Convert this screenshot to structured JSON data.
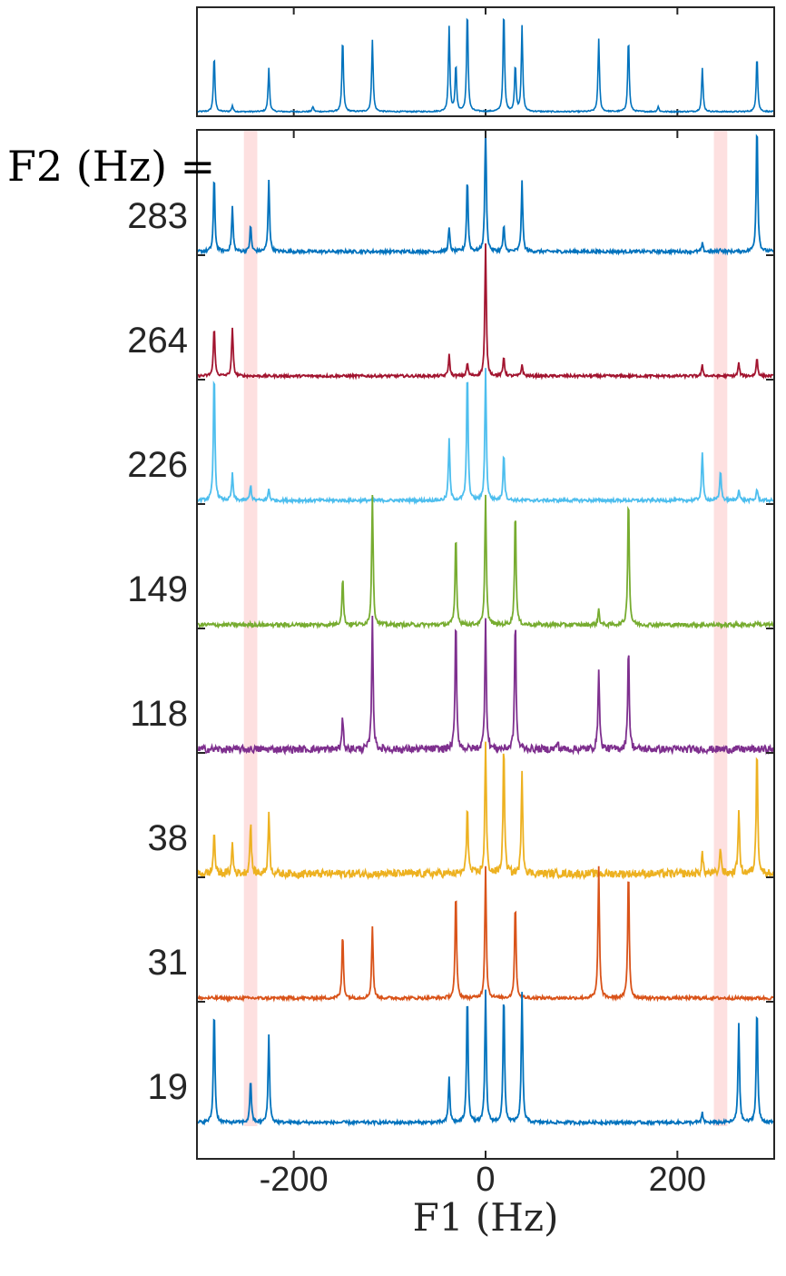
{
  "chart_data": {
    "type": "line",
    "title": "",
    "xlabel": "F1 (Hz)",
    "f2_label": "F2 (Hz) =",
    "xlim": [
      -300,
      300
    ],
    "x_ticks": [
      -200,
      0,
      200
    ],
    "highlight_bands": [
      [
        -252,
        -238
      ],
      [
        238,
        252
      ]
    ],
    "highlight_color": "#fde0e0",
    "top_panel": {
      "color": "#0072bd",
      "peaks": [
        {
          "x": -283,
          "h": 0.55
        },
        {
          "x": -264,
          "h": 0.06
        },
        {
          "x": -226,
          "h": 0.42
        },
        {
          "x": -180,
          "h": 0.05
        },
        {
          "x": -149,
          "h": 0.72
        },
        {
          "x": -118,
          "h": 0.7
        },
        {
          "x": -38,
          "h": 0.82
        },
        {
          "x": -31,
          "h": 0.46
        },
        {
          "x": -19,
          "h": 1.0
        },
        {
          "x": 19,
          "h": 1.0
        },
        {
          "x": 31,
          "h": 0.46
        },
        {
          "x": 38,
          "h": 0.82
        },
        {
          "x": 118,
          "h": 0.7
        },
        {
          "x": 149,
          "h": 0.72
        },
        {
          "x": 180,
          "h": 0.05
        },
        {
          "x": 226,
          "h": 0.42
        },
        {
          "x": 283,
          "h": 0.55
        }
      ]
    },
    "series": [
      {
        "name": "283",
        "color": "#0072bd",
        "noise": 0.012,
        "peaks": [
          {
            "x": -283,
            "h": 0.58
          },
          {
            "x": -264,
            "h": 0.34
          },
          {
            "x": -245,
            "h": 0.2
          },
          {
            "x": -226,
            "h": 0.55
          },
          {
            "x": -38,
            "h": 0.18
          },
          {
            "x": -19,
            "h": 0.57
          },
          {
            "x": 0,
            "h": 1.0
          },
          {
            "x": 19,
            "h": 0.2
          },
          {
            "x": 38,
            "h": 0.53
          },
          {
            "x": 226,
            "h": 0.06
          },
          {
            "x": 245,
            "h": 0.02
          },
          {
            "x": 283,
            "h": 1.0
          }
        ]
      },
      {
        "name": "264",
        "color": "#a2142f",
        "noise": 0.01,
        "peaks": [
          {
            "x": -283,
            "h": 0.39
          },
          {
            "x": -264,
            "h": 0.37
          },
          {
            "x": -38,
            "h": 0.16
          },
          {
            "x": -19,
            "h": 0.1
          },
          {
            "x": 0,
            "h": 1.0
          },
          {
            "x": 19,
            "h": 0.15
          },
          {
            "x": 38,
            "h": 0.09
          },
          {
            "x": 226,
            "h": 0.08
          },
          {
            "x": 264,
            "h": 0.1
          },
          {
            "x": 283,
            "h": 0.14
          }
        ]
      },
      {
        "name": "226",
        "color": "#4dbeee",
        "noise": 0.012,
        "peaks": [
          {
            "x": -283,
            "h": 1.0
          },
          {
            "x": -264,
            "h": 0.2
          },
          {
            "x": -245,
            "h": 0.12
          },
          {
            "x": -226,
            "h": 0.09
          },
          {
            "x": -38,
            "h": 0.47
          },
          {
            "x": -19,
            "h": 1.0
          },
          {
            "x": 0,
            "h": 1.0
          },
          {
            "x": 19,
            "h": 0.37
          },
          {
            "x": 226,
            "h": 0.37
          },
          {
            "x": 245,
            "h": 0.24
          },
          {
            "x": 264,
            "h": 0.09
          },
          {
            "x": 283,
            "h": 0.09
          }
        ]
      },
      {
        "name": "149",
        "color": "#77ac30",
        "noise": 0.015,
        "peaks": [
          {
            "x": -149,
            "h": 0.37
          },
          {
            "x": -118,
            "h": 1.0
          },
          {
            "x": -31,
            "h": 0.7
          },
          {
            "x": 0,
            "h": 1.0
          },
          {
            "x": 31,
            "h": 0.89
          },
          {
            "x": 118,
            "h": 0.12
          },
          {
            "x": 149,
            "h": 1.0
          },
          {
            "x": 283,
            "h": 0.02
          }
        ]
      },
      {
        "name": "118",
        "color": "#7e2f8e",
        "noise": 0.028,
        "peaks": [
          {
            "x": -149,
            "h": 0.24
          },
          {
            "x": -118,
            "h": 1.0
          },
          {
            "x": -31,
            "h": 1.0
          },
          {
            "x": 0,
            "h": 1.0
          },
          {
            "x": 31,
            "h": 1.0
          },
          {
            "x": 75,
            "h": 0.06
          },
          {
            "x": 118,
            "h": 0.63
          },
          {
            "x": 149,
            "h": 0.8
          }
        ]
      },
      {
        "name": "38",
        "color": "#edb120",
        "noise": 0.03,
        "peaks": [
          {
            "x": -283,
            "h": 0.33
          },
          {
            "x": -264,
            "h": 0.23
          },
          {
            "x": -245,
            "h": 0.4
          },
          {
            "x": -226,
            "h": 0.48
          },
          {
            "x": -19,
            "h": 0.54
          },
          {
            "x": 0,
            "h": 1.0
          },
          {
            "x": 19,
            "h": 1.0
          },
          {
            "x": 38,
            "h": 0.78
          },
          {
            "x": 226,
            "h": 0.16
          },
          {
            "x": 245,
            "h": 0.21
          },
          {
            "x": 264,
            "h": 0.5
          },
          {
            "x": 283,
            "h": 1.0
          }
        ]
      },
      {
        "name": "31",
        "color": "#d95319",
        "noise": 0.012,
        "peaks": [
          {
            "x": -149,
            "h": 0.5
          },
          {
            "x": -118,
            "h": 0.55
          },
          {
            "x": -31,
            "h": 0.82
          },
          {
            "x": 0,
            "h": 1.0
          },
          {
            "x": 31,
            "h": 0.74
          },
          {
            "x": 118,
            "h": 1.0
          },
          {
            "x": 149,
            "h": 1.0
          }
        ]
      },
      {
        "name": "19",
        "color": "#0072bd",
        "noise": 0.012,
        "peaks": [
          {
            "x": -283,
            "h": 0.89
          },
          {
            "x": -245,
            "h": 0.34
          },
          {
            "x": -226,
            "h": 0.67
          },
          {
            "x": -38,
            "h": 0.35
          },
          {
            "x": -19,
            "h": 1.0
          },
          {
            "x": 0,
            "h": 1.0
          },
          {
            "x": 19,
            "h": 1.0
          },
          {
            "x": 38,
            "h": 1.0
          },
          {
            "x": 226,
            "h": 0.07
          },
          {
            "x": 264,
            "h": 0.76
          },
          {
            "x": 283,
            "h": 0.9
          }
        ]
      }
    ]
  }
}
